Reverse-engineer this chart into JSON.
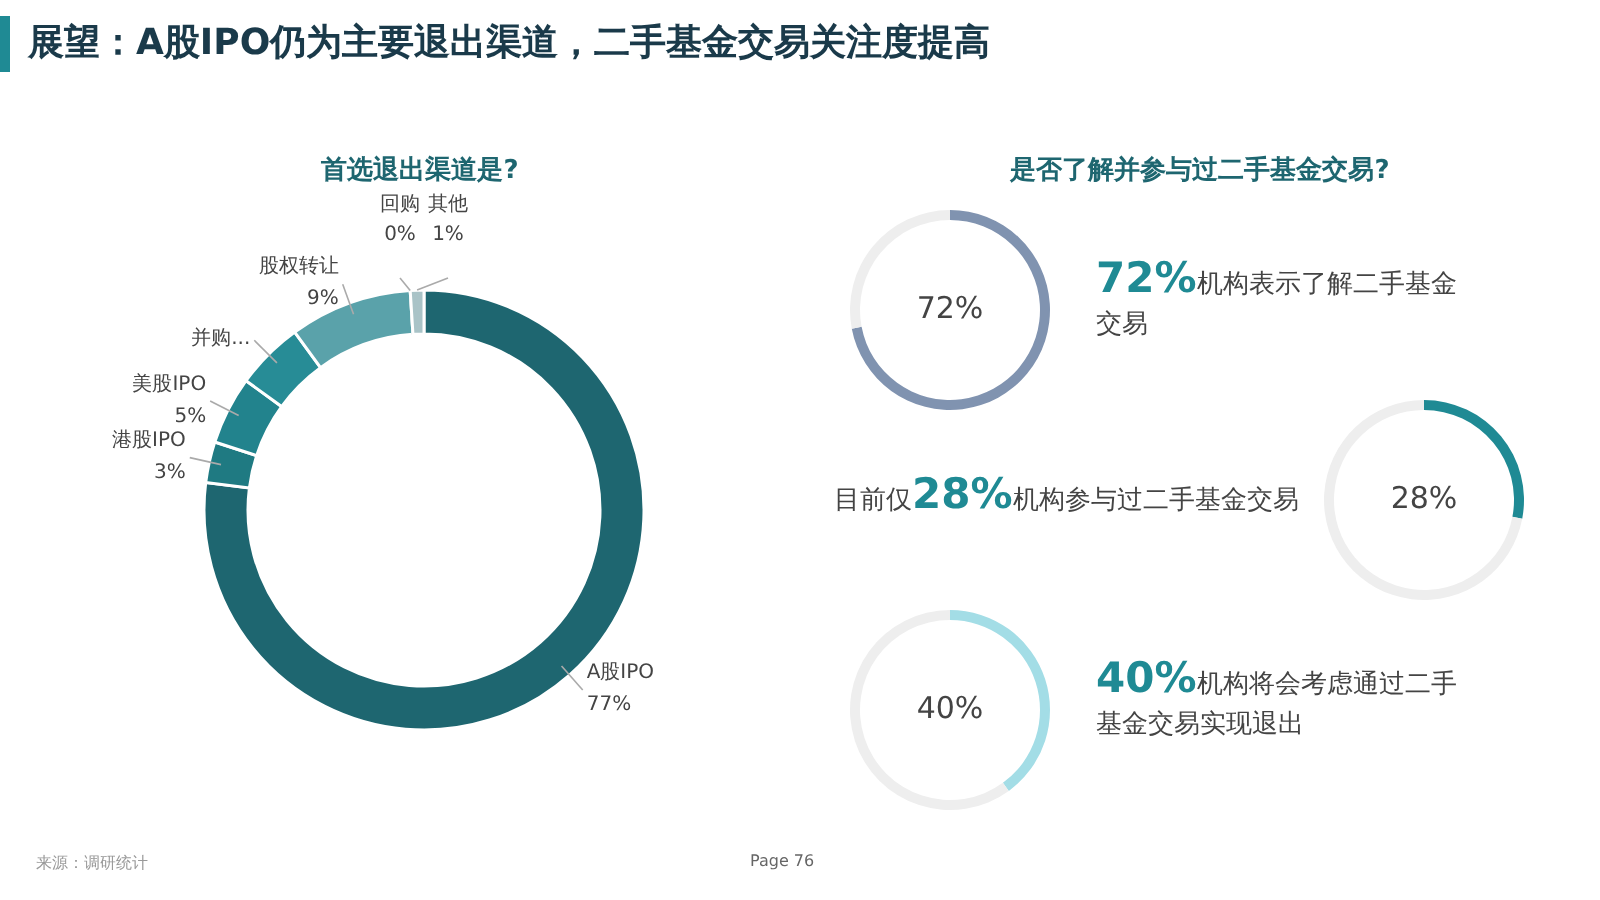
{
  "chart_data": [
    {
      "type": "donut",
      "title": "展望：A股IPO仍为主要退出渠道，二手基金交易关注度提高",
      "subtitle": "首选退出渠道是?",
      "categories": [
        "A股IPO",
        "港股IPO",
        "美股IPO",
        "并购...",
        "股权转让",
        "回购",
        "其他"
      ],
      "values": [
        77,
        3,
        5,
        5,
        9,
        0,
        1
      ],
      "value_labels": [
        "77%",
        "3%",
        "5%",
        null,
        "9%",
        "0%",
        "1%"
      ],
      "colors": [
        "#1e6670",
        "#1f7a82",
        "#22838d",
        "#278c96",
        "#5aa2aa",
        "#b8cfd2",
        "#a9c3c7"
      ],
      "annotations": [
        "来源：调研统计",
        "Page  76"
      ]
    },
    {
      "type": "donut",
      "title": "是否了解并参与过二手基金交易?",
      "categories": [
        null,
        null
      ],
      "values": [
        72,
        28
      ],
      "value_labels": [
        "72%",
        null
      ],
      "colors": [
        "#8093b0",
        "#eeeeee"
      ],
      "annotations": [
        "**72%**机构表示了解二手基金交易"
      ]
    },
    {
      "type": "donut",
      "categories": [
        null,
        null
      ],
      "values": [
        28,
        72
      ],
      "value_labels": [
        "28%",
        null
      ],
      "colors": [
        "#1f8a94",
        "#eeeeee"
      ],
      "annotations": [
        "目前仅**28%**机构参与过二手基金交易"
      ]
    },
    {
      "type": "donut",
      "categories": [
        null,
        null
      ],
      "values": [
        40,
        60
      ],
      "value_labels": [
        "40%",
        null
      ],
      "colors": [
        "#a3dde6",
        "#eeeeee"
      ],
      "annotations": [
        "**40%**机构将会考虑通过二手基金交易实现退出"
      ]
    }
  ]
}
